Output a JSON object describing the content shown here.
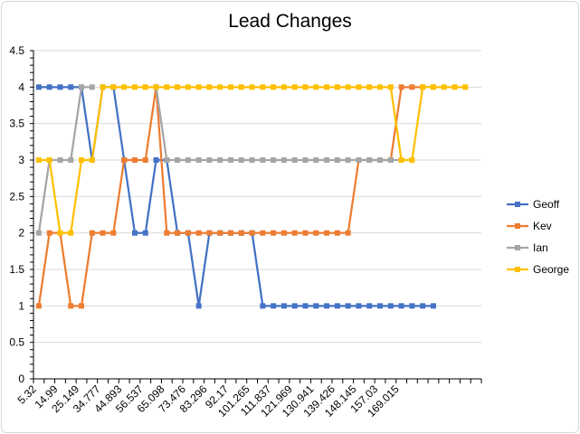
{
  "chart_data": {
    "type": "line",
    "title": "Lead Changes",
    "xlabel": "",
    "ylabel": "",
    "ylim": [
      0,
      4.5
    ],
    "yticks": [
      0,
      0.5,
      1,
      1.5,
      2,
      2.5,
      3,
      3.5,
      4,
      4.5
    ],
    "grid": true,
    "legend_position": "right",
    "x_tick_labels": [
      "5.32",
      "14.99",
      "25.149",
      "34.777",
      "44.893",
      "56.537",
      "65.098",
      "73.476",
      "83.296",
      "92.17",
      "101.265",
      "111.837",
      "121.969",
      "130.941",
      "139.426",
      "148.145",
      "157.03",
      "169.015"
    ],
    "series": [
      {
        "name": "Geoff",
        "color": "#4472C4",
        "values": [
          4,
          4,
          4,
          4,
          4,
          3,
          4,
          4,
          3,
          2,
          2,
          3,
          3,
          2,
          2,
          1,
          2,
          2,
          2,
          2,
          2,
          1,
          1,
          1,
          1,
          1,
          1,
          1,
          1,
          1,
          1,
          1,
          1,
          1,
          1,
          1,
          1,
          1,
          null,
          null,
          null,
          null
        ]
      },
      {
        "name": "Kev",
        "color": "#ED7D31",
        "values": [
          1,
          2,
          2,
          1,
          1,
          2,
          2,
          2,
          3,
          3,
          3,
          4,
          2,
          2,
          2,
          2,
          2,
          2,
          2,
          2,
          2,
          2,
          2,
          2,
          2,
          2,
          2,
          2,
          2,
          2,
          3,
          3,
          3,
          3,
          4,
          4,
          4,
          4,
          null,
          null,
          null,
          null
        ]
      },
      {
        "name": "Ian",
        "color": "#A5A5A5",
        "values": [
          2,
          3,
          3,
          3,
          4,
          4,
          null,
          null,
          null,
          null,
          null,
          4,
          3,
          3,
          3,
          3,
          3,
          3,
          3,
          3,
          3,
          3,
          3,
          3,
          3,
          3,
          3,
          3,
          3,
          3,
          3,
          3,
          3,
          3,
          3,
          null,
          null,
          null,
          null,
          null,
          null,
          null
        ]
      },
      {
        "name": "George",
        "color": "#FFC000",
        "values": [
          3,
          3,
          2,
          2,
          3,
          3,
          4,
          4,
          4,
          4,
          4,
          4,
          4,
          4,
          4,
          4,
          4,
          4,
          4,
          4,
          4,
          4,
          4,
          4,
          4,
          4,
          4,
          4,
          4,
          4,
          4,
          4,
          4,
          4,
          3,
          3,
          4,
          4,
          4,
          4,
          4,
          null
        ]
      }
    ]
  }
}
